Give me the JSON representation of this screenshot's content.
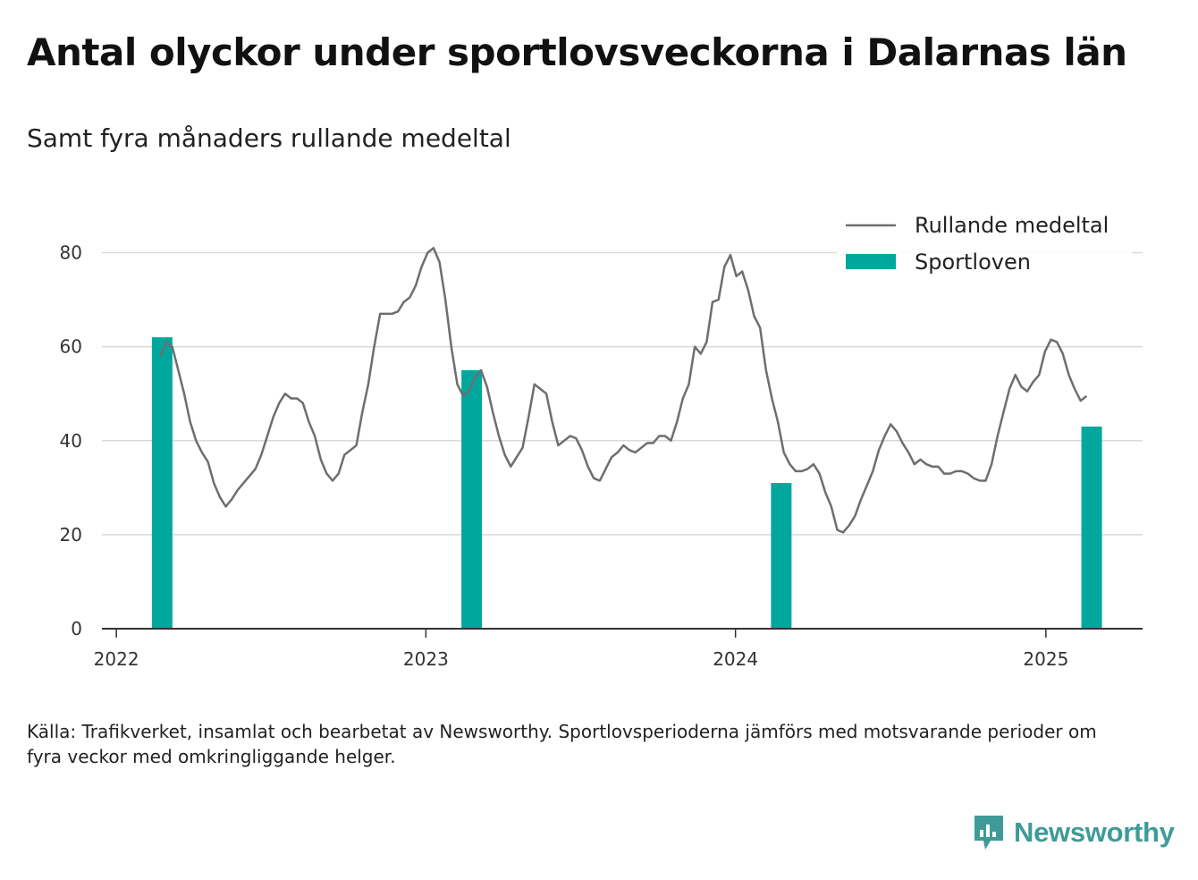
{
  "title": "Antal olyckor under sportlovsveckorna i Dalarnas län",
  "subtitle": "Samt fyra månaders rullande medeltal",
  "source": "Källa: Trafikverket, insamlat och bearbetat av Newsworthy. Sportlovsperioderna jämförs med motsvarande perioder om fyra veckor med omkringliggande helger.",
  "brand": {
    "name": "Newsworthy",
    "logo_icon": "newsworthy-logo-icon"
  },
  "colors": {
    "line": "#6e6e72",
    "bar": "#00a79d",
    "grid": "#d9d9d9",
    "axis": "#333333",
    "brand": "#3e9b98"
  },
  "chart_data": {
    "type": "bar",
    "x_type": "date",
    "grid": true,
    "legend_position": "top-right",
    "xticks": [
      "2022-01-01",
      "2023-01-01",
      "2024-01-01",
      "2025-01-01"
    ],
    "xtick_labels": [
      "2022",
      "2023",
      "2024",
      "2025"
    ],
    "yticks": [
      0,
      20,
      40,
      60,
      80
    ],
    "ylim": [
      0,
      90
    ],
    "xlim": [
      "2021-12-15",
      "2025-04-25"
    ],
    "series": [
      {
        "name": "Sportloven",
        "type": "bar",
        "color": "#00a79d",
        "x": [
          "2022-02-24",
          "2023-02-24",
          "2024-02-24",
          "2025-02-24"
        ],
        "values": [
          62,
          55,
          31,
          43
        ]
      },
      {
        "name": "Rullande medeltal",
        "type": "line",
        "color": "#6e6e72",
        "x": [
          "2022-02-22",
          "2022-03-01",
          "2022-03-08",
          "2022-03-15",
          "2022-03-22",
          "2022-03-29",
          "2022-04-05",
          "2022-04-12",
          "2022-04-19",
          "2022-04-26",
          "2022-05-03",
          "2022-05-10",
          "2022-05-17",
          "2022-05-24",
          "2022-05-31",
          "2022-06-07",
          "2022-06-14",
          "2022-06-21",
          "2022-06-28",
          "2022-07-05",
          "2022-07-12",
          "2022-07-19",
          "2022-07-26",
          "2022-08-02",
          "2022-08-09",
          "2022-08-16",
          "2022-08-23",
          "2022-08-30",
          "2022-09-06",
          "2022-09-13",
          "2022-09-20",
          "2022-09-27",
          "2022-10-04",
          "2022-10-11",
          "2022-10-18",
          "2022-10-25",
          "2022-11-01",
          "2022-11-08",
          "2022-11-15",
          "2022-11-22",
          "2022-11-29",
          "2022-12-06",
          "2022-12-13",
          "2022-12-20",
          "2022-12-27",
          "2023-01-03",
          "2023-01-10",
          "2023-01-17",
          "2023-01-24",
          "2023-01-31",
          "2023-02-07",
          "2023-02-14",
          "2023-02-21",
          "2023-02-28",
          "2023-03-07",
          "2023-03-14",
          "2023-03-21",
          "2023-03-28",
          "2023-04-04",
          "2023-04-11",
          "2023-04-18",
          "2023-04-25",
          "2023-05-02",
          "2023-05-09",
          "2023-05-16",
          "2023-05-23",
          "2023-05-30",
          "2023-06-06",
          "2023-06-13",
          "2023-06-20",
          "2023-06-27",
          "2023-07-04",
          "2023-07-11",
          "2023-07-18",
          "2023-07-25",
          "2023-08-01",
          "2023-08-08",
          "2023-08-15",
          "2023-08-22",
          "2023-08-29",
          "2023-09-05",
          "2023-09-12",
          "2023-09-19",
          "2023-09-26",
          "2023-10-03",
          "2023-10-10",
          "2023-10-17",
          "2023-10-24",
          "2023-10-31",
          "2023-11-07",
          "2023-11-14",
          "2023-11-21",
          "2023-11-28",
          "2023-12-05",
          "2023-12-12",
          "2023-12-19",
          "2023-12-26",
          "2024-01-02",
          "2024-01-09",
          "2024-01-16",
          "2024-01-23",
          "2024-01-30",
          "2024-02-06",
          "2024-02-13",
          "2024-02-20",
          "2024-02-27",
          "2024-03-05",
          "2024-03-12",
          "2024-03-19",
          "2024-03-26",
          "2024-04-02",
          "2024-04-09",
          "2024-04-16",
          "2024-04-23",
          "2024-04-30",
          "2024-05-07",
          "2024-05-14",
          "2024-05-21",
          "2024-05-28",
          "2024-06-04",
          "2024-06-11",
          "2024-06-18",
          "2024-06-25",
          "2024-07-02",
          "2024-07-09",
          "2024-07-16",
          "2024-07-23",
          "2024-07-30",
          "2024-08-06",
          "2024-08-13",
          "2024-08-20",
          "2024-08-27",
          "2024-09-03",
          "2024-09-10",
          "2024-09-17",
          "2024-09-24",
          "2024-10-01",
          "2024-10-08",
          "2024-10-15",
          "2024-10-22",
          "2024-10-29",
          "2024-11-05",
          "2024-11-12",
          "2024-11-19",
          "2024-11-26",
          "2024-12-03",
          "2024-12-10",
          "2024-12-17",
          "2024-12-24",
          "2024-12-31",
          "2025-01-07",
          "2025-01-14",
          "2025-01-21",
          "2025-01-28",
          "2025-02-04",
          "2025-02-11",
          "2025-02-18"
        ],
        "values": [
          58,
          61,
          60,
          55,
          50,
          44,
          40,
          37.5,
          35.5,
          31,
          28,
          26,
          27.5,
          29.5,
          31,
          32.5,
          34,
          37,
          41,
          45,
          48,
          50,
          49,
          49,
          48,
          44,
          41,
          36,
          33,
          31.5,
          33,
          37,
          38,
          39,
          46,
          52,
          60,
          67,
          67,
          67,
          67.5,
          69.5,
          70.5,
          73,
          77,
          80,
          81,
          78,
          70,
          60,
          52,
          49.5,
          50.5,
          53.5,
          55,
          51.5,
          46,
          41,
          37,
          34.5,
          36.5,
          38.5,
          45,
          52,
          51,
          50,
          44,
          39,
          40,
          41,
          40.5,
          38,
          34.5,
          32,
          31.5,
          34,
          36.5,
          37.5,
          39,
          38,
          37.5,
          38.5,
          39.5,
          39.5,
          41,
          41,
          40,
          44,
          49,
          52,
          60,
          58.5,
          61,
          69.5,
          70,
          77,
          79.5,
          75,
          76,
          72,
          66.5,
          64,
          55,
          49,
          44,
          37.5,
          35,
          33.5,
          33.5,
          34,
          35,
          33,
          29,
          26,
          21,
          20.5,
          22,
          24,
          27.5,
          30.5,
          33.5,
          38,
          41,
          43.5,
          42,
          39.5,
          37.5,
          35,
          36,
          35,
          34.5,
          34.5,
          33,
          33,
          33.5,
          33.5,
          33,
          32,
          31.5,
          31.5,
          35,
          41,
          46,
          51,
          54,
          51.5,
          50.5,
          52.5,
          54,
          59,
          61.5,
          61,
          58.5,
          54,
          51,
          48.5,
          49.5
        ]
      }
    ]
  }
}
